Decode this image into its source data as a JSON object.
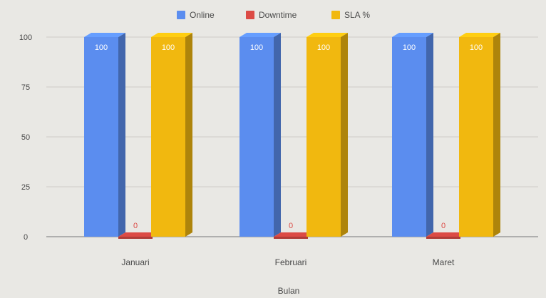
{
  "chart_data": {
    "type": "bar",
    "style": "3d-column",
    "categories": [
      "Januari",
      "Februari",
      "Maret"
    ],
    "series": [
      {
        "name": "Online",
        "values": [
          100,
          100,
          100
        ],
        "color": "#5b8def"
      },
      {
        "name": "Downtime",
        "values": [
          0,
          0,
          0
        ],
        "color": "#dc4b45"
      },
      {
        "name": "SLA %",
        "values": [
          100,
          100,
          100
        ],
        "color": "#f1b80f"
      }
    ],
    "data_labels": {
      "Online": [
        "100",
        "100",
        "100"
      ],
      "Downtime": [
        "0",
        "0",
        "0"
      ],
      "SLA %": [
        "100",
        "100",
        "100"
      ]
    },
    "xlabel": "Bulan",
    "ylabel": "",
    "ylim": [
      0,
      100
    ],
    "yticks": [
      "0",
      "25",
      "50",
      "75",
      "100"
    ],
    "grid": true,
    "legend_position": "top-center"
  }
}
